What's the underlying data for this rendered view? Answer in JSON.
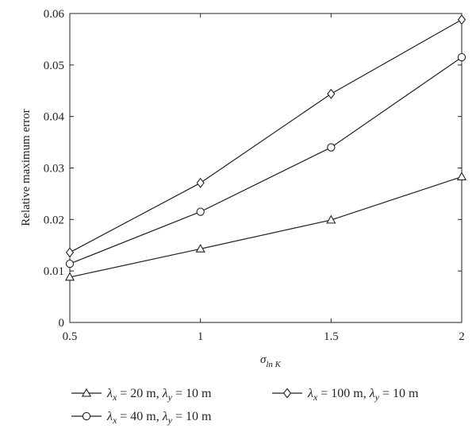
{
  "chart_data": {
    "type": "line",
    "title": "",
    "xlabel": "σ",
    "xlabel_sub": "ln K",
    "ylabel": "Relative maximum error",
    "x": [
      0.5,
      1,
      1.5,
      2
    ],
    "xlim": [
      0.5,
      2
    ],
    "ylim": [
      0,
      0.06
    ],
    "xticks": [
      "0.5",
      "1",
      "1.5",
      "2"
    ],
    "yticks": [
      "0",
      "0.01",
      "0.02",
      "0.03",
      "0.04",
      "0.05",
      "0.06"
    ],
    "grid": false,
    "legend_position": "bottom",
    "series": [
      {
        "name": "λx = 20 m, λy = 10 m",
        "lambda_x": "20",
        "lambda_y": "10",
        "marker": "triangle",
        "values": [
          0.0088,
          0.0143,
          0.0199,
          0.0283
        ]
      },
      {
        "name": "λx = 40 m, λy = 10 m",
        "lambda_x": "40",
        "lambda_y": "10",
        "marker": "circle",
        "values": [
          0.0114,
          0.0215,
          0.034,
          0.0515
        ]
      },
      {
        "name": "λx = 100 m, λy = 10 m",
        "lambda_x": "100",
        "lambda_y": "10",
        "marker": "diamond",
        "values": [
          0.0136,
          0.0271,
          0.0444,
          0.0588
        ]
      }
    ],
    "colors": {
      "line": "#231f20",
      "marker_fill": "#ffffff",
      "axis": "#231f20"
    }
  }
}
